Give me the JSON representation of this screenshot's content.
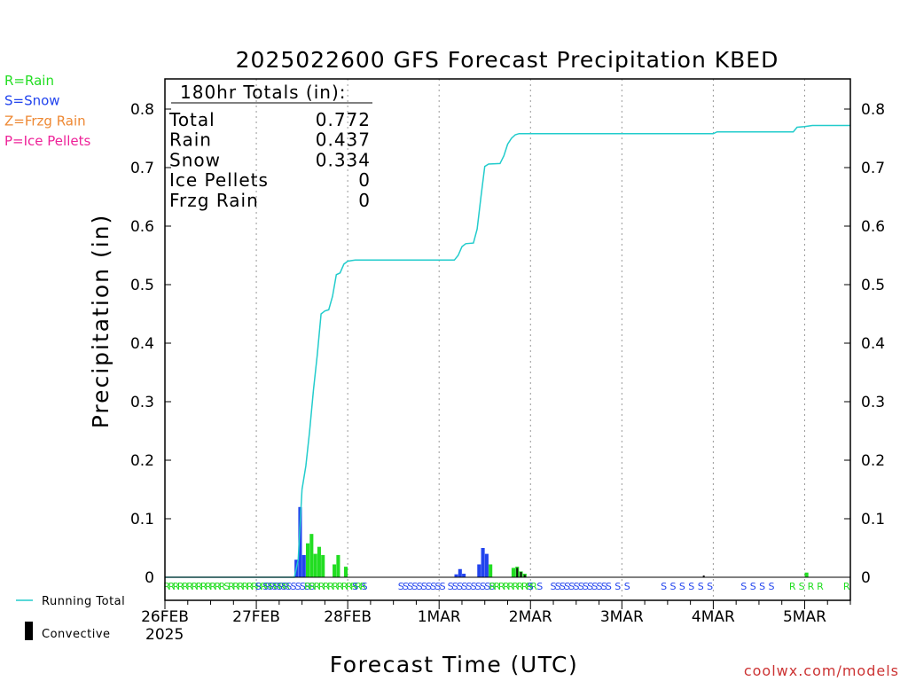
{
  "title": "2025022600 GFS Forecast Precipitation KBED",
  "xlabel": "Forecast Time (UTC)",
  "ylabel": "Precipitation (in)",
  "watermark": "coolwx.com/models",
  "year_label": "2025",
  "type_legend": [
    {
      "text": "R=Rain",
      "color": "#22dd22"
    },
    {
      "text": "S=Snow",
      "color": "#2244ee"
    },
    {
      "text": "Z=Frzg Rain",
      "color": "#ee8833"
    },
    {
      "text": "P=Ice Pellets",
      "color": "#ee2299"
    }
  ],
  "line_legend": {
    "running_total": "Running Total",
    "convective": "Convective"
  },
  "totals": {
    "header": "180hr Totals (in):",
    "rows": [
      {
        "label": "Total",
        "value": "0.772"
      },
      {
        "label": "Rain",
        "value": "0.437"
      },
      {
        "label": "Snow",
        "value": "0.334"
      },
      {
        "label": "Ice Pellets",
        "value": "0"
      },
      {
        "label": "Frzg Rain",
        "value": "0"
      }
    ]
  },
  "colors": {
    "rain": "#22dd22",
    "snow": "#2244ee",
    "running_total": "#22cccc",
    "convective": "#111111",
    "watermark": "#cc3333"
  },
  "chart_data": {
    "type": "bar",
    "x_unit": "forecast hour from 2025-02-26 00Z",
    "xlim": [
      0,
      180
    ],
    "ylim": [
      0,
      0.85
    ],
    "yticks": [
      0,
      0.1,
      0.2,
      0.3,
      0.4,
      0.5,
      0.6,
      0.7,
      0.8
    ],
    "xticks": [
      {
        "hour": 0,
        "label": "26FEB"
      },
      {
        "hour": 24,
        "label": "27FEB"
      },
      {
        "hour": 48,
        "label": "28FEB"
      },
      {
        "hour": 72,
        "label": "1MAR"
      },
      {
        "hour": 96,
        "label": "2MAR"
      },
      {
        "hour": 120,
        "label": "3MAR"
      },
      {
        "hour": 144,
        "label": "4MAR"
      },
      {
        "hour": 168,
        "label": "5MAR"
      }
    ],
    "grid": "vertical dotted",
    "bars": [
      {
        "x": 34.5,
        "value": 0.03,
        "type": "snow"
      },
      {
        "x": 35.5,
        "value": 0.12,
        "type": "snow"
      },
      {
        "x": 36.5,
        "value": 0.038,
        "type": "snow"
      },
      {
        "x": 37.5,
        "value": 0.058,
        "type": "rain"
      },
      {
        "x": 38.5,
        "value": 0.074,
        "type": "rain"
      },
      {
        "x": 39.5,
        "value": 0.04,
        "type": "rain"
      },
      {
        "x": 40.5,
        "value": 0.052,
        "type": "rain"
      },
      {
        "x": 41.5,
        "value": 0.038,
        "type": "rain"
      },
      {
        "x": 44.5,
        "value": 0.022,
        "type": "rain"
      },
      {
        "x": 45.5,
        "value": 0.038,
        "type": "rain"
      },
      {
        "x": 47.5,
        "value": 0.018,
        "type": "rain"
      },
      {
        "x": 76.5,
        "value": 0.005,
        "type": "snow"
      },
      {
        "x": 77.5,
        "value": 0.014,
        "type": "snow"
      },
      {
        "x": 78.5,
        "value": 0.006,
        "type": "snow"
      },
      {
        "x": 82.5,
        "value": 0.022,
        "type": "snow"
      },
      {
        "x": 83.5,
        "value": 0.05,
        "type": "snow"
      },
      {
        "x": 84.5,
        "value": 0.04,
        "type": "snow"
      },
      {
        "x": 85.5,
        "value": 0.022,
        "type": "rain"
      },
      {
        "x": 91.5,
        "value": 0.016,
        "type": "rain"
      },
      {
        "x": 92.5,
        "value": 0.018,
        "type": "rain"
      },
      {
        "x": 93.5,
        "value": 0.01,
        "type": "rain"
      },
      {
        "x": 94.5,
        "value": 0.006,
        "type": "rain"
      },
      {
        "x": 168.5,
        "value": 0.008,
        "type": "rain"
      }
    ],
    "convective_bars": [
      {
        "x": 92.5,
        "value": 0.016
      },
      {
        "x": 93.5,
        "value": 0.009
      },
      {
        "x": 94.5,
        "value": 0.004
      },
      {
        "x": 141.5,
        "value": 0.003
      }
    ],
    "running_total": [
      [
        0,
        0
      ],
      [
        34,
        0
      ],
      [
        35,
        0.03
      ],
      [
        36,
        0.15
      ],
      [
        37,
        0.19
      ],
      [
        38,
        0.25
      ],
      [
        39,
        0.32
      ],
      [
        40,
        0.38
      ],
      [
        41,
        0.45
      ],
      [
        42,
        0.455
      ],
      [
        43,
        0.457
      ],
      [
        44,
        0.48
      ],
      [
        45,
        0.517
      ],
      [
        46,
        0.52
      ],
      [
        47,
        0.535
      ],
      [
        48,
        0.54
      ],
      [
        49,
        0.541
      ],
      [
        50,
        0.542
      ],
      [
        60,
        0.542
      ],
      [
        76,
        0.542
      ],
      [
        77,
        0.55
      ],
      [
        78,
        0.565
      ],
      [
        79,
        0.57
      ],
      [
        81,
        0.571
      ],
      [
        82,
        0.595
      ],
      [
        83,
        0.65
      ],
      [
        84,
        0.702
      ],
      [
        85,
        0.706
      ],
      [
        88,
        0.707
      ],
      [
        89,
        0.72
      ],
      [
        90,
        0.74
      ],
      [
        91,
        0.75
      ],
      [
        92,
        0.756
      ],
      [
        93,
        0.758
      ],
      [
        144,
        0.758
      ],
      [
        145,
        0.761
      ],
      [
        165,
        0.761
      ],
      [
        166,
        0.769
      ],
      [
        168,
        0.77
      ],
      [
        169,
        0.771
      ],
      [
        170,
        0.772
      ],
      [
        180,
        0.772
      ]
    ],
    "ptype_strip": [
      {
        "x": 0.5,
        "text": "RRRRRRRRRRRRRSRRRRRRRRRRRRR",
        "color": "#22dd22",
        "dx": 5.2
      },
      {
        "x": 24.5,
        "text": "S",
        "color": "#2244ee",
        "dx": 5.2
      },
      {
        "x": 26.5,
        "text": "SSSSSSSSSSS",
        "color": "#2244ee",
        "dx": 5.2
      },
      {
        "x": 37.5,
        "text": "RRRRRRRRRRRRR",
        "color": "#22dd22",
        "dx": 5.2
      },
      {
        "x": 50.0,
        "text": "S S",
        "color": "#2244ee",
        "dx": 5.2
      },
      {
        "x": 62.0,
        "text": "SSSSSSSSSS",
        "color": "#2244ee",
        "dx": 5.2
      },
      {
        "x": 75.0,
        "text": "SSSSSSSSSS",
        "color": "#2244ee",
        "dx": 5.2
      },
      {
        "x": 86.0,
        "text": "RRRRRRRRRR",
        "color": "#22dd22",
        "dx": 5.2
      },
      {
        "x": 96.0,
        "text": "S S",
        "color": "#2244ee",
        "dx": 5.2
      },
      {
        "x": 102.0,
        "text": "SSSSSSSSSSSSS S S",
        "color": "#2244ee",
        "dx": 5.2
      },
      {
        "x": 131.0,
        "text": "SSSSSS",
        "color": "#2244ee",
        "dx": 10.4
      },
      {
        "x": 152.0,
        "text": "SSSS",
        "color": "#2244ee",
        "dx": 10.4
      },
      {
        "x": 164.8,
        "text": "RSRR",
        "color": "#22dd22",
        "dx": 10.4
      },
      {
        "x": 179.0,
        "text": "R",
        "color": "#22dd22",
        "dx": 5.2
      }
    ]
  }
}
